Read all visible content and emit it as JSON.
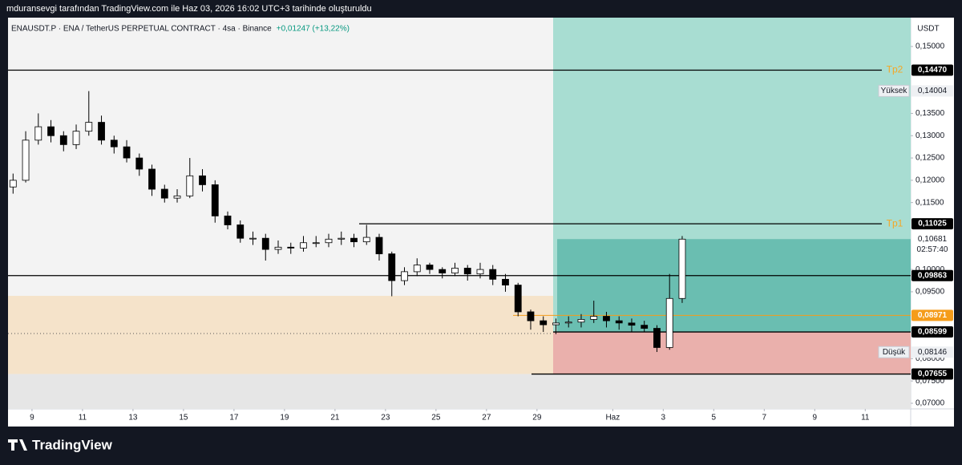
{
  "banner": "mduransevgi tarafından TradingView.com ile Haz 03, 2026 16:02 UTC+3 tarihinde oluşturuldu",
  "brand": "TradingView",
  "chart_data": {
    "type": "candlestick",
    "symbol": "ENAUSDT.P · ENA / TetherUS PERPETUAL CONTRACT · 4sa · Binance",
    "change": "+0,01247 (+13,22%)",
    "unit": "USDT",
    "xlim": [
      8.05,
      43.8
    ],
    "ylim": [
      0.06874,
      0.15647
    ],
    "xticks": [
      9,
      11,
      13,
      15,
      17,
      19,
      21,
      23,
      25,
      27,
      29,
      {
        "value": 32,
        "label": "Haz"
      },
      {
        "value": 34,
        "label": "3"
      },
      {
        "value": 36,
        "label": "5"
      },
      {
        "value": 38,
        "label": "7"
      },
      {
        "value": 40,
        "label": "9"
      },
      {
        "value": 42,
        "label": "11"
      }
    ],
    "yticks": [
      {
        "value": 0.15,
        "label": "0,15000"
      },
      {
        "value": 0.135,
        "label": "0,13500"
      },
      {
        "value": 0.13,
        "label": "0,13000"
      },
      {
        "value": 0.125,
        "label": "0,12500"
      },
      {
        "value": 0.12,
        "label": "0,12000"
      },
      {
        "value": 0.115,
        "label": "0,11500"
      },
      {
        "value": 0.1,
        "label": "0,10000"
      },
      {
        "value": 0.095,
        "label": "0,09500"
      },
      {
        "value": 0.08,
        "label": "0,08000"
      },
      {
        "value": 0.075,
        "label": "0,07500"
      },
      {
        "value": 0.07,
        "label": "0,07000"
      }
    ],
    "up_color": "#ffffff",
    "down_color": "#000000",
    "x": [
      8.25,
      8.75,
      9.25,
      9.75,
      10.25,
      10.75,
      11.25,
      11.75,
      12.25,
      12.75,
      13.25,
      13.75,
      14.25,
      14.75,
      15.25,
      15.75,
      16.25,
      16.75,
      17.25,
      17.75,
      18.25,
      18.75,
      19.25,
      19.75,
      20.25,
      20.75,
      21.25,
      21.75,
      22.25,
      22.75,
      23.25,
      23.75,
      24.25,
      24.75,
      25.25,
      25.75,
      26.25,
      26.75,
      27.25,
      27.75,
      28.25,
      28.75,
      29.25,
      29.75,
      30.25,
      30.75,
      31.25,
      31.75,
      32.25,
      32.75,
      33.25,
      33.75,
      34.25,
      34.75
    ],
    "open": [
      0.1185,
      0.12,
      0.129,
      0.132,
      0.13,
      0.128,
      0.131,
      0.133,
      0.129,
      0.1275,
      0.125,
      0.1225,
      0.118,
      0.116,
      0.1165,
      0.121,
      0.119,
      0.112,
      0.11,
      0.107,
      0.107,
      0.1045,
      0.105,
      0.1048,
      0.106,
      0.106,
      0.1068,
      0.107,
      0.1062,
      0.1072,
      0.1035,
      0.0975,
      0.0995,
      0.101,
      0.1,
      0.0992,
      0.1003,
      0.099,
      0.1,
      0.0978,
      0.0965,
      0.0905,
      0.0885,
      0.0876,
      0.088,
      0.0882,
      0.0888,
      0.0895,
      0.0885,
      0.088,
      0.0875,
      0.0868,
      0.0825,
      0.0935
    ],
    "high": [
      0.1215,
      0.131,
      0.135,
      0.1335,
      0.131,
      0.1325,
      0.14,
      0.1345,
      0.13,
      0.129,
      0.126,
      0.1235,
      0.119,
      0.118,
      0.125,
      0.1225,
      0.12,
      0.113,
      0.111,
      0.1085,
      0.108,
      0.1065,
      0.106,
      0.1075,
      0.1075,
      0.108,
      0.1085,
      0.108,
      0.11,
      0.108,
      0.104,
      0.1005,
      0.1025,
      0.1015,
      0.1005,
      0.1015,
      0.101,
      0.1015,
      0.101,
      0.099,
      0.097,
      0.091,
      0.0895,
      0.089,
      0.0895,
      0.09,
      0.093,
      0.0905,
      0.0895,
      0.089,
      0.0885,
      0.0875,
      0.099,
      0.1075
    ],
    "low": [
      0.117,
      0.1195,
      0.128,
      0.1285,
      0.1265,
      0.127,
      0.13,
      0.128,
      0.126,
      0.124,
      0.121,
      0.1165,
      0.115,
      0.115,
      0.116,
      0.1175,
      0.1105,
      0.109,
      0.106,
      0.1055,
      0.102,
      0.1035,
      0.1035,
      0.104,
      0.105,
      0.105,
      0.1055,
      0.105,
      0.1055,
      0.102,
      0.094,
      0.0965,
      0.0985,
      0.099,
      0.098,
      0.0985,
      0.0975,
      0.098,
      0.0965,
      0.095,
      0.0895,
      0.0865,
      0.086,
      0.0855,
      0.087,
      0.087,
      0.088,
      0.087,
      0.0865,
      0.086,
      0.086,
      0.0815,
      0.082,
      0.0925
    ],
    "close": [
      0.12,
      0.129,
      0.132,
      0.13,
      0.128,
      0.131,
      0.133,
      0.129,
      0.1275,
      0.125,
      0.1225,
      0.118,
      0.116,
      0.1165,
      0.121,
      0.119,
      0.112,
      0.11,
      0.107,
      0.107,
      0.1045,
      0.105,
      0.1048,
      0.106,
      0.106,
      0.1068,
      0.107,
      0.1062,
      0.1072,
      0.1035,
      0.0975,
      0.0995,
      0.101,
      0.1,
      0.0992,
      0.1003,
      0.099,
      0.1,
      0.0978,
      0.0965,
      0.0905,
      0.0885,
      0.0876,
      0.088,
      0.0882,
      0.0888,
      0.0895,
      0.0885,
      0.088,
      0.0875,
      0.0868,
      0.0825,
      0.0935,
      0.1068
    ],
    "levels": [
      {
        "name": "Tp2",
        "value": 0.1447,
        "label": "0,14470"
      },
      {
        "name": "Tp1",
        "value": 0.11025,
        "label": "0,11025"
      },
      {
        "value": 0.09863,
        "label": "0,09863"
      },
      {
        "value": 0.08971,
        "label": "0,08971"
      },
      {
        "value": 0.08599,
        "label": "0,08599"
      },
      {
        "value": 0.07655,
        "label": "0,07655"
      }
    ],
    "session_high": {
      "text": "Yüksek",
      "value": 0.14004,
      "label": "0,14004"
    },
    "session_low": {
      "text": "Düşük",
      "value": 0.08146,
      "label": "0,08146"
    },
    "last_price": {
      "value": 0.10681,
      "label": "0,10681",
      "countdown": "02:57:40"
    }
  }
}
